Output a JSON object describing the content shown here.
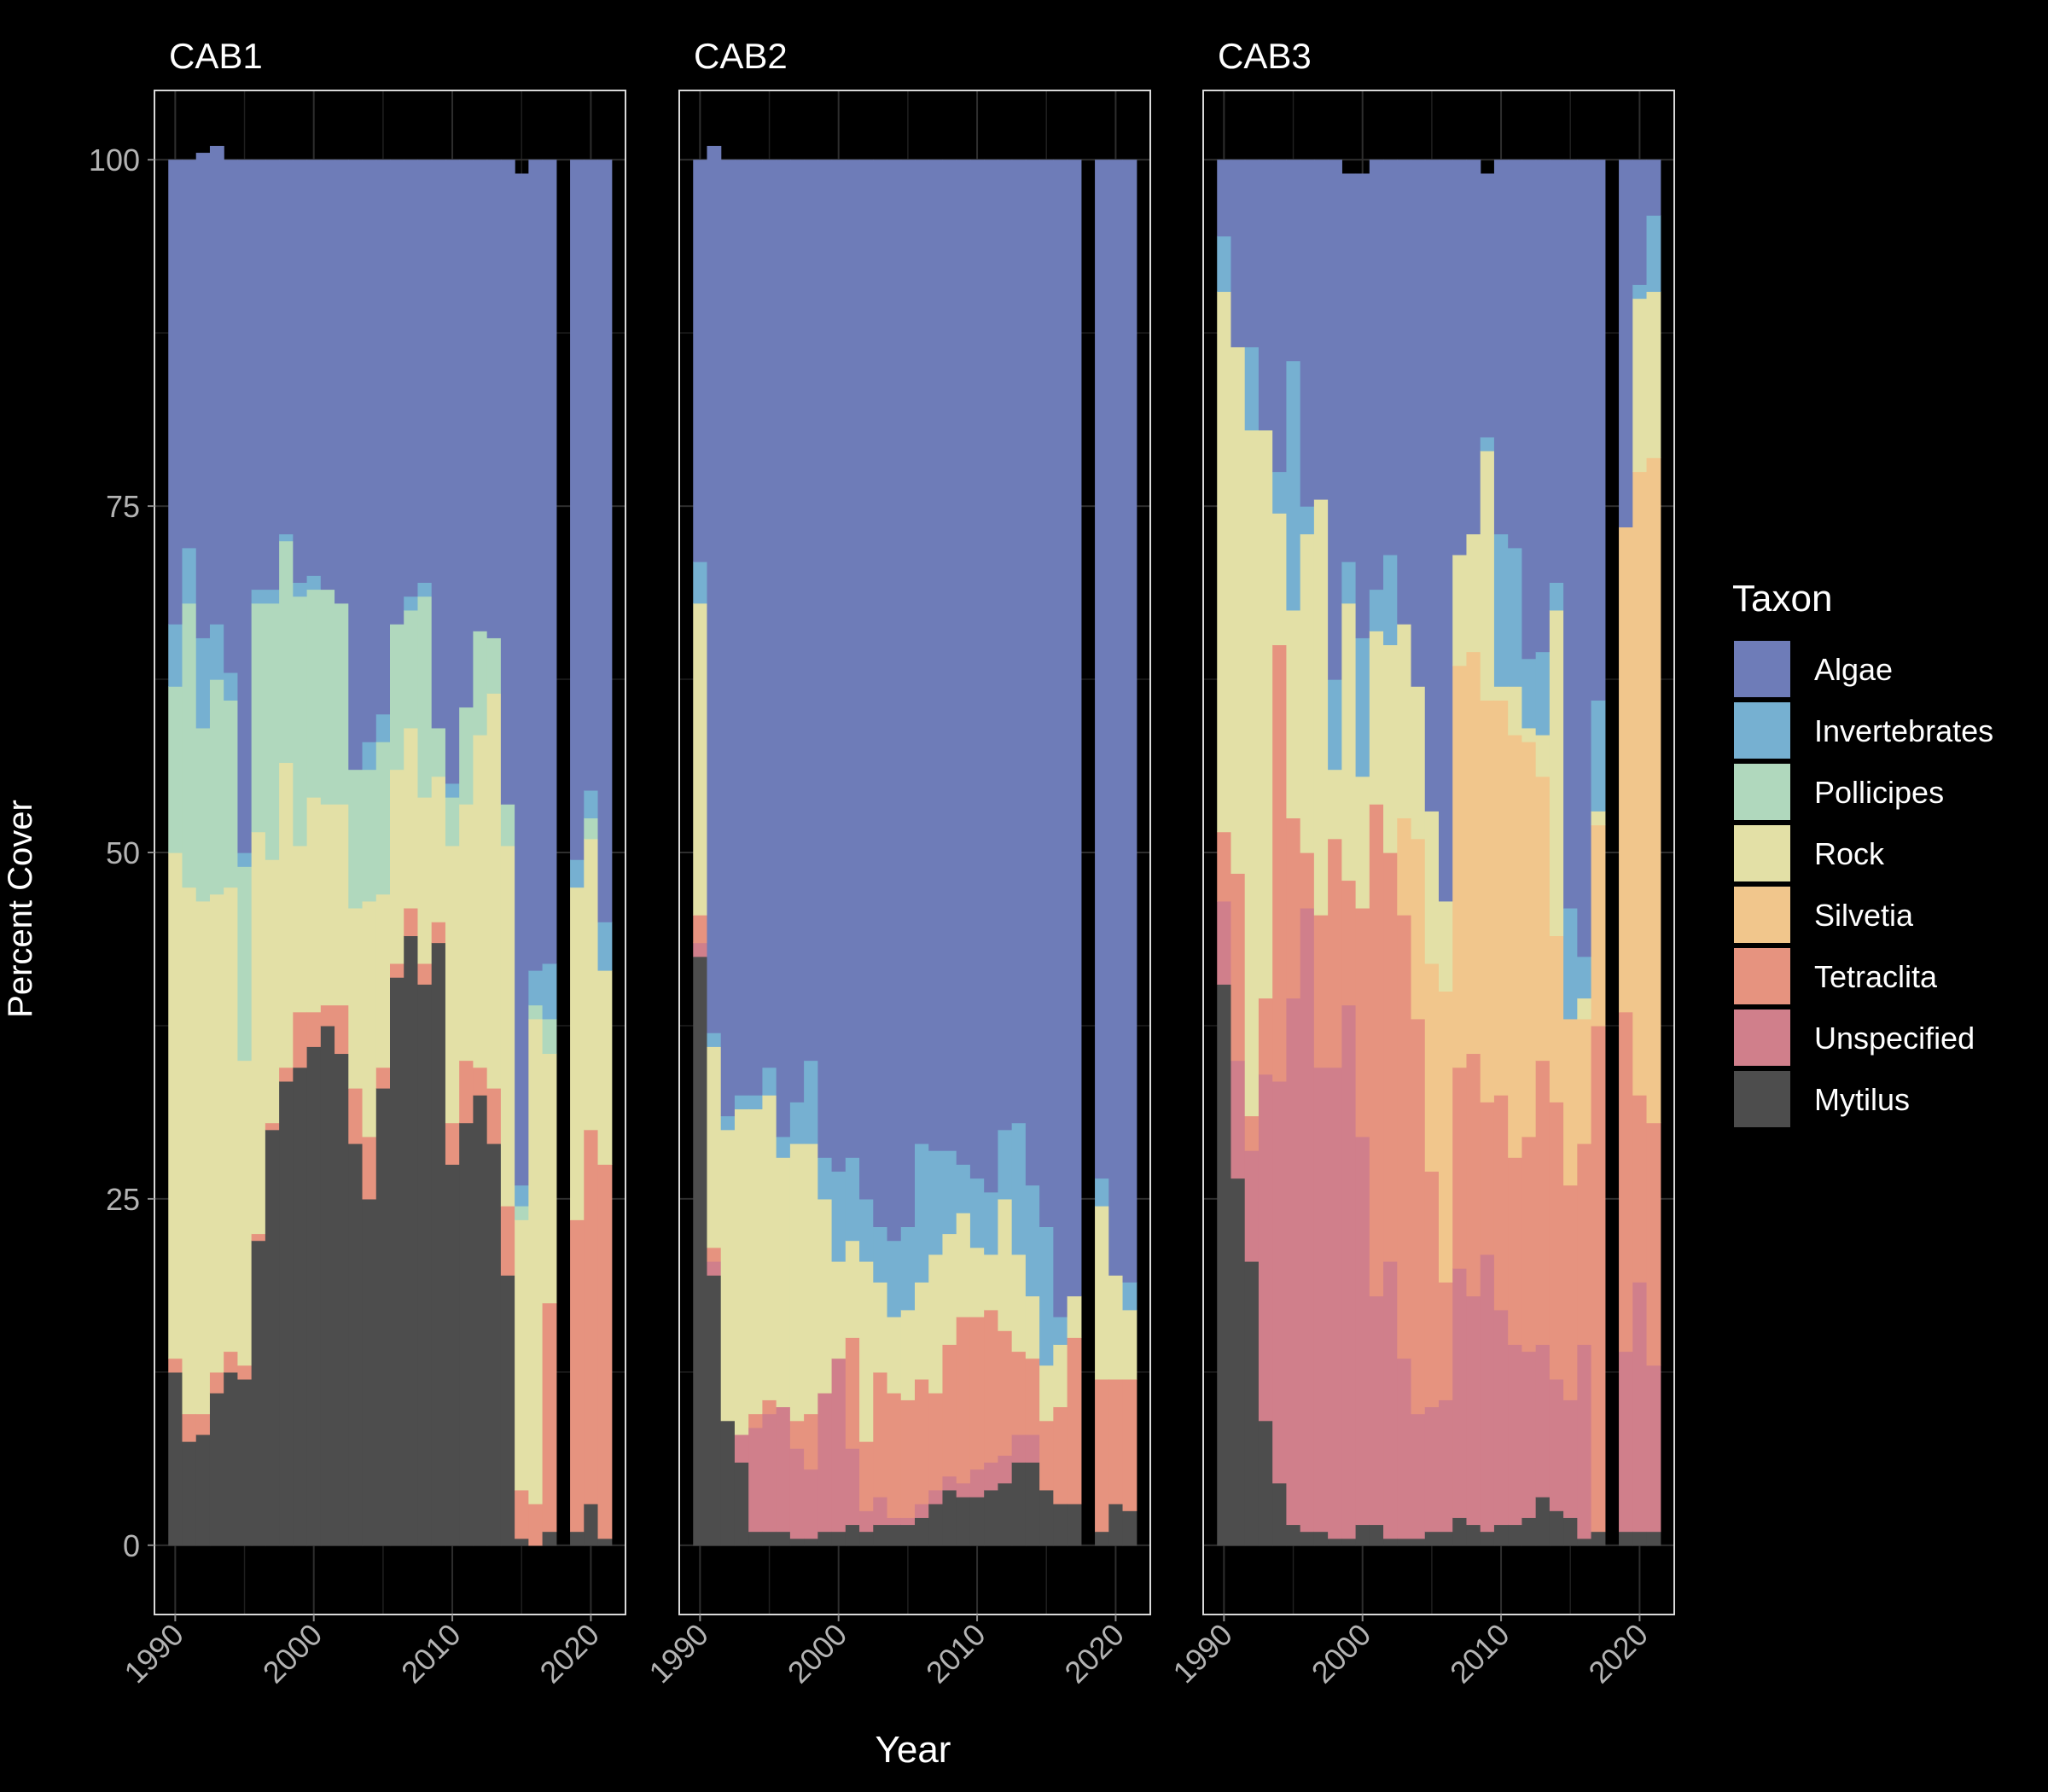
{
  "chart_data": {
    "type": "area",
    "stacked": true,
    "panels": [
      "CAB1",
      "CAB2",
      "CAB3"
    ],
    "xlabel": "Year",
    "ylabel": "Percent Cover",
    "xlim": [
      1988.5,
      2022.5
    ],
    "ylim": [
      -5,
      105
    ],
    "x_ticks": [
      "1990",
      "2000",
      "2010",
      "2020"
    ],
    "y_ticks": [
      "0",
      "25",
      "50",
      "75",
      "100"
    ],
    "grid": true,
    "legend": {
      "title": "Taxon",
      "position": "right",
      "order": [
        "Algae",
        "Invertebrates",
        "Pollicipes",
        "Rock",
        "Silvetia",
        "Tetraclita",
        "Unspecified",
        "Mytilus"
      ]
    },
    "colors": {
      "Algae": "#6e7cb8",
      "Invertebrates": "#76b0d1",
      "Pollicipes": "#b0d8bd",
      "Rock": "#e3e0a6",
      "Silvetia": "#f1c68c",
      "Tetraclita": "#e6937f",
      "Unspecified": "#d07f8b",
      "Mytilus": "#4d4d4d"
    },
    "stack_order_bottom_to_top": [
      "Mytilus",
      "Unspecified",
      "Tetraclita",
      "Silvetia",
      "Rock",
      "Pollicipes",
      "Invertebrates",
      "Algae"
    ],
    "years": [
      1990,
      1991,
      1992,
      1993,
      1994,
      1995,
      1996,
      1997,
      1998,
      1999,
      2000,
      2001,
      2002,
      2003,
      2004,
      2005,
      2006,
      2007,
      2008,
      2009,
      2010,
      2011,
      2012,
      2013,
      2014,
      2015,
      2016,
      2017,
      2018,
      2019,
      2020,
      2021
    ],
    "series": {
      "CAB1": {
        "Mytilus": [
          12.5,
          7.5,
          8,
          11,
          12.5,
          12,
          22,
          30,
          33.5,
          34.5,
          36,
          37.5,
          35.5,
          29,
          25,
          33,
          41,
          44,
          40.5,
          43.5,
          27.5,
          30.5,
          32.5,
          29,
          19.5,
          0.5,
          0,
          1,
          null,
          1,
          3,
          0.5
        ],
        "Unspecified": [
          0,
          0,
          0,
          0,
          0,
          0,
          0,
          0,
          0,
          0,
          0,
          0,
          0,
          0,
          0,
          0,
          0,
          0,
          0,
          0,
          0,
          0,
          0,
          0,
          0,
          0,
          0,
          0,
          null,
          0,
          0,
          0
        ],
        "Tetraclita": [
          1,
          2,
          1.5,
          1.5,
          1.5,
          1,
          0.5,
          0.5,
          1,
          4,
          2.5,
          1.5,
          3.5,
          4,
          4.5,
          1.5,
          1,
          2,
          1.5,
          1.5,
          3,
          4.5,
          2,
          4,
          5,
          3.5,
          3,
          16.5,
          null,
          22.5,
          27,
          27
        ],
        "Silvetia": [
          0,
          0,
          0,
          0,
          0,
          0,
          0,
          0,
          0,
          0,
          0,
          0,
          0,
          0,
          0,
          0,
          0,
          0,
          0,
          0,
          0,
          0,
          0,
          0,
          0,
          0,
          0,
          0,
          null,
          0,
          0,
          0
        ],
        "Rock": [
          36.5,
          38,
          37,
          34.5,
          33.5,
          22,
          29,
          19,
          22,
          12,
          15.5,
          14.5,
          14.5,
          13,
          17,
          12.5,
          14,
          13,
          12,
          10.5,
          20,
          18.5,
          24,
          28.5,
          26,
          19.5,
          35,
          18,
          null,
          24,
          21,
          14
        ],
        "Pollicipes": [
          12,
          20.5,
          12.5,
          15.5,
          13.5,
          14,
          16.5,
          18.5,
          16,
          18,
          15,
          15.5,
          14.5,
          10,
          9.5,
          11,
          10.5,
          8.5,
          14.5,
          3.5,
          3.5,
          7,
          7.5,
          4,
          3,
          1,
          1,
          2.5,
          null,
          0,
          1.5,
          0
        ],
        "Invertebrates": [
          4.5,
          4,
          6.5,
          4,
          2,
          1,
          1,
          1,
          0.5,
          1,
          1,
          0,
          0,
          0,
          2,
          2,
          0,
          1,
          1,
          0,
          1,
          0,
          0,
          0,
          0,
          1.5,
          2.5,
          4,
          null,
          2,
          2,
          3.5
        ],
        "Algae": [
          33.5,
          28,
          35,
          34.5,
          37,
          50,
          31,
          31,
          27,
          30.5,
          30,
          31,
          32,
          44,
          42,
          40,
          33.5,
          31.5,
          30.5,
          41,
          45,
          39.5,
          34,
          34.5,
          46.5,
          73,
          58.5,
          58,
          null,
          50.5,
          45.5,
          55
        ]
      },
      "CAB2": {
        "Mytilus": [
          42.5,
          19.5,
          9,
          6,
          1,
          1,
          1,
          0.5,
          0.5,
          1,
          1,
          1.5,
          1,
          1.5,
          1.5,
          1.5,
          2,
          3,
          4,
          3.5,
          3.5,
          4,
          4.5,
          6,
          6,
          4,
          3,
          3,
          null,
          1,
          3,
          2.5
        ],
        "Unspecified": [
          1,
          1,
          0,
          2,
          7.5,
          8.5,
          9,
          6.5,
          5,
          10,
          12.5,
          5.5,
          1.5,
          2,
          0.5,
          0.5,
          1,
          1,
          1,
          1,
          2,
          2,
          2,
          2,
          2,
          0,
          0,
          0,
          null,
          0,
          0,
          0
        ],
        "Tetraclita": [
          2,
          1,
          0,
          0,
          1,
          1,
          0,
          2,
          4,
          0,
          0,
          8,
          5,
          9,
          9,
          8.5,
          9,
          7,
          9.5,
          12,
          11,
          11,
          9,
          6,
          5.5,
          5,
          7,
          12,
          null,
          11,
          9,
          9.5
        ],
        "Silvetia": [
          0,
          0,
          0,
          0,
          0,
          0,
          0,
          0,
          0,
          0,
          0,
          0,
          0,
          0,
          0,
          0,
          0,
          0,
          0,
          0,
          0,
          0,
          0,
          0,
          0,
          0,
          0,
          0,
          null,
          0,
          0,
          0
        ],
        "Rock": [
          22.5,
          14.5,
          21,
          23.5,
          22,
          22,
          18,
          20,
          19.5,
          14,
          7,
          7,
          13,
          6.5,
          5.5,
          6.5,
          7,
          10,
          8,
          7.5,
          5,
          4,
          9.5,
          7,
          4.5,
          4,
          4.5,
          3,
          null,
          12.5,
          7.5,
          5
        ],
        "Pollicipes": [
          0,
          0,
          0,
          0,
          0,
          0,
          0,
          0,
          0,
          0,
          0,
          0,
          0,
          0,
          0,
          0,
          0,
          0,
          0,
          0,
          0,
          0,
          0,
          0,
          0,
          0,
          0,
          0,
          null,
          0,
          0,
          0
        ],
        "Invertebrates": [
          3,
          1,
          1,
          1,
          1,
          2,
          1.5,
          3,
          6,
          3,
          6.5,
          6,
          4.5,
          4,
          5.5,
          6,
          10,
          7.5,
          6,
          3.5,
          5,
          4.5,
          5,
          9.5,
          8,
          10,
          2,
          0,
          null,
          2,
          0,
          2
        ],
        "Algae": [
          29,
          64,
          69,
          67.5,
          67.5,
          65.5,
          70.5,
          68,
          65,
          72,
          73,
          72,
          75,
          77,
          78,
          77,
          71,
          71.5,
          71.5,
          72.5,
          73.5,
          74.5,
          70,
          69.5,
          74,
          77,
          83.5,
          82,
          null,
          73.5,
          80.5,
          81
        ]
      },
      "CAB3": {
        "Mytilus": [
          40.5,
          26.5,
          20.5,
          9,
          4.5,
          1.5,
          1,
          1,
          0.5,
          0.5,
          1.5,
          1.5,
          0.5,
          0.5,
          0.5,
          1,
          1,
          2,
          1.5,
          1,
          1.5,
          1.5,
          2,
          3.5,
          2.5,
          2,
          0.5,
          1,
          null,
          1,
          1,
          1
        ],
        "Unspecified": [
          6,
          8.5,
          8,
          25,
          29,
          38,
          45,
          33.5,
          34,
          38.5,
          28,
          16.5,
          20,
          13,
          9,
          9,
          9.5,
          18,
          16.5,
          20,
          15.5,
          13,
          12,
          11,
          9.5,
          8.5,
          14,
          0,
          null,
          13,
          18,
          12
        ],
        "Tetraclita": [
          5,
          13.5,
          2.5,
          5.5,
          31.5,
          13,
          4,
          11,
          16.5,
          9,
          16.5,
          35.5,
          29.5,
          32,
          28.5,
          17,
          8.5,
          14.5,
          17.5,
          11,
          15.5,
          13.5,
          15.5,
          20.5,
          20,
          15.5,
          14.5,
          36.5,
          null,
          24.5,
          13.5,
          17.5
        ],
        "Silvetia": [
          0,
          0,
          0,
          0,
          0,
          0,
          0,
          0,
          0,
          0,
          0,
          0,
          0,
          7,
          13,
          15,
          21,
          29,
          29,
          29,
          28.5,
          30.5,
          28.5,
          20.5,
          12,
          12,
          9,
          14.5,
          null,
          35,
          45,
          48
        ],
        "Rock": [
          39,
          38,
          49.5,
          41,
          9.5,
          15,
          23,
          30,
          5,
          20,
          9.5,
          12.5,
          15,
          14,
          11,
          11,
          6.5,
          8,
          8.5,
          18,
          1,
          3.5,
          1,
          3,
          23.5,
          0,
          1.5,
          1,
          null,
          0,
          12.5,
          12
        ],
        "Pollicipes": [
          0,
          0,
          0,
          0,
          0,
          0,
          0,
          0,
          0,
          0,
          0,
          0,
          0,
          0,
          0,
          0,
          0,
          0,
          0,
          0,
          0,
          0,
          0,
          0,
          0,
          0,
          0,
          0,
          null,
          0,
          0,
          0
        ],
        "Invertebrates": [
          4,
          0,
          6,
          0,
          3,
          18,
          2,
          0,
          6.5,
          3,
          10,
          3,
          6.5,
          0,
          0,
          0,
          0,
          0,
          0,
          1,
          11,
          10,
          5,
          6,
          2,
          8,
          3,
          8,
          null,
          0,
          1,
          5.5
        ],
        "Algae": [
          5.5,
          13.5,
          13.5,
          19.5,
          22.5,
          14.5,
          25,
          24.5,
          37.5,
          28,
          33.5,
          31,
          28.5,
          33.5,
          38,
          47,
          53.5,
          28.5,
          27,
          19,
          27,
          28,
          36,
          35.5,
          30.5,
          54,
          57.5,
          39,
          null,
          26.5,
          9,
          4
        ]
      }
    }
  }
}
